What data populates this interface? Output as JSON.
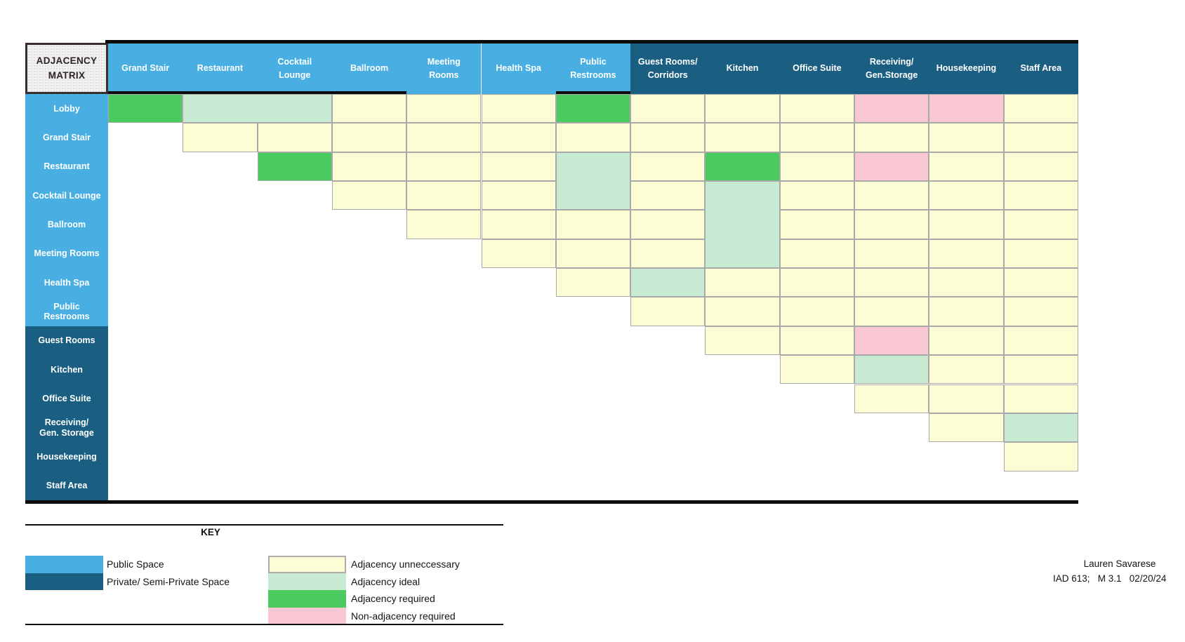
{
  "title": "ADJACENCY\nMATRIX",
  "key": {
    "title": "KEY"
  },
  "colors": {
    "public_space": "#49AFE3",
    "private_space": "#1A5E81",
    "U": "#FCFCD5",
    "I": "#C8EAD2",
    "R": "#4BCB5F",
    "N": "#F9C8D2",
    "gridline": "#A9A9A9",
    "black_rule": "#0C0C0C"
  },
  "columns": [
    {
      "label": "Grand Stair",
      "group": "public"
    },
    {
      "label": "Restaurant",
      "group": "public"
    },
    {
      "label": "Cocktail\nLounge",
      "group": "public"
    },
    {
      "label": "Ballroom",
      "group": "public"
    },
    {
      "label": "Meeting\nRooms",
      "group": "public"
    },
    {
      "label": "Health Spa",
      "group": "public"
    },
    {
      "label": "Public\nRestrooms",
      "group": "public"
    },
    {
      "label": "Guest Rooms/\nCorridors",
      "group": "private"
    },
    {
      "label": "Kitchen",
      "group": "private"
    },
    {
      "label": "Office Suite",
      "group": "private"
    },
    {
      "label": "Receiving/\nGen.Storage",
      "group": "private"
    },
    {
      "label": "Housekeeping",
      "group": "private"
    },
    {
      "label": "Staff Area",
      "group": "private"
    }
  ],
  "rows": [
    {
      "label": "Lobby",
      "group": "public",
      "cells": [
        {
          "c": 0,
          "v": "R"
        },
        {
          "c": 1,
          "v": "I",
          "cs": 2
        },
        {
          "c": 3,
          "v": "U"
        },
        {
          "c": 4,
          "v": "U"
        },
        {
          "c": 5,
          "v": "U"
        },
        {
          "c": 6,
          "v": "R"
        },
        {
          "c": 7,
          "v": "U"
        },
        {
          "c": 8,
          "v": "U"
        },
        {
          "c": 9,
          "v": "U"
        },
        {
          "c": 10,
          "v": "N"
        },
        {
          "c": 11,
          "v": "N"
        },
        {
          "c": 12,
          "v": "U"
        }
      ]
    },
    {
      "label": "Grand Stair",
      "group": "public",
      "cells": [
        {
          "c": 1,
          "v": "U"
        },
        {
          "c": 2,
          "v": "U"
        },
        {
          "c": 3,
          "v": "U"
        },
        {
          "c": 4,
          "v": "U"
        },
        {
          "c": 5,
          "v": "U"
        },
        {
          "c": 6,
          "v": "U"
        },
        {
          "c": 7,
          "v": "U"
        },
        {
          "c": 8,
          "v": "U"
        },
        {
          "c": 9,
          "v": "U"
        },
        {
          "c": 10,
          "v": "U"
        },
        {
          "c": 11,
          "v": "U"
        },
        {
          "c": 12,
          "v": "U"
        }
      ]
    },
    {
      "label": "Restaurant",
      "group": "public",
      "cells": [
        {
          "c": 2,
          "v": "R"
        },
        {
          "c": 3,
          "v": "U"
        },
        {
          "c": 4,
          "v": "U"
        },
        {
          "c": 5,
          "v": "U"
        },
        {
          "c": 6,
          "v": "I",
          "rs": 2
        },
        {
          "c": 7,
          "v": "U"
        },
        {
          "c": 8,
          "v": "R"
        },
        {
          "c": 9,
          "v": "U"
        },
        {
          "c": 10,
          "v": "N"
        },
        {
          "c": 11,
          "v": "U"
        },
        {
          "c": 12,
          "v": "U"
        }
      ]
    },
    {
      "label": "Cocktail Lounge",
      "group": "public",
      "cells": [
        {
          "c": 3,
          "v": "U"
        },
        {
          "c": 4,
          "v": "U"
        },
        {
          "c": 5,
          "v": "U"
        },
        {
          "c": 7,
          "v": "U"
        },
        {
          "c": 8,
          "v": "I",
          "rs": 3
        },
        {
          "c": 9,
          "v": "U"
        },
        {
          "c": 10,
          "v": "U"
        },
        {
          "c": 11,
          "v": "U"
        },
        {
          "c": 12,
          "v": "U"
        }
      ]
    },
    {
      "label": "Ballroom",
      "group": "public",
      "cells": [
        {
          "c": 4,
          "v": "U"
        },
        {
          "c": 5,
          "v": "U"
        },
        {
          "c": 6,
          "v": "U"
        },
        {
          "c": 7,
          "v": "U"
        },
        {
          "c": 9,
          "v": "U"
        },
        {
          "c": 10,
          "v": "U"
        },
        {
          "c": 11,
          "v": "U"
        },
        {
          "c": 12,
          "v": "U"
        }
      ]
    },
    {
      "label": "Meeting Rooms",
      "group": "public",
      "cells": [
        {
          "c": 5,
          "v": "U"
        },
        {
          "c": 6,
          "v": "U"
        },
        {
          "c": 7,
          "v": "U"
        },
        {
          "c": 9,
          "v": "U"
        },
        {
          "c": 10,
          "v": "U"
        },
        {
          "c": 11,
          "v": "U"
        },
        {
          "c": 12,
          "v": "U"
        }
      ]
    },
    {
      "label": "Health Spa",
      "group": "public",
      "cells": [
        {
          "c": 6,
          "v": "U"
        },
        {
          "c": 7,
          "v": "I"
        },
        {
          "c": 8,
          "v": "U"
        },
        {
          "c": 9,
          "v": "U"
        },
        {
          "c": 10,
          "v": "U"
        },
        {
          "c": 11,
          "v": "U"
        },
        {
          "c": 12,
          "v": "U"
        }
      ]
    },
    {
      "label": "Public\nRestrooms",
      "group": "public",
      "cells": [
        {
          "c": 7,
          "v": "U"
        },
        {
          "c": 8,
          "v": "U"
        },
        {
          "c": 9,
          "v": "U"
        },
        {
          "c": 10,
          "v": "U"
        },
        {
          "c": 11,
          "v": "U"
        },
        {
          "c": 12,
          "v": "U"
        }
      ]
    },
    {
      "label": "Guest Rooms",
      "group": "private",
      "cells": [
        {
          "c": 8,
          "v": "U"
        },
        {
          "c": 9,
          "v": "U"
        },
        {
          "c": 10,
          "v": "N"
        },
        {
          "c": 11,
          "v": "U"
        },
        {
          "c": 12,
          "v": "U"
        }
      ]
    },
    {
      "label": "Kitchen",
      "group": "private",
      "cells": [
        {
          "c": 9,
          "v": "U"
        },
        {
          "c": 10,
          "v": "I"
        },
        {
          "c": 11,
          "v": "U"
        },
        {
          "c": 12,
          "v": "U"
        }
      ]
    },
    {
      "label": "Office Suite",
      "group": "private",
      "cells": [
        {
          "c": 10,
          "v": "U"
        },
        {
          "c": 11,
          "v": "U"
        },
        {
          "c": 12,
          "v": "U"
        }
      ]
    },
    {
      "label": "Receiving/\nGen. Storage",
      "group": "private",
      "cells": [
        {
          "c": 11,
          "v": "U"
        },
        {
          "c": 12,
          "v": "I"
        }
      ]
    },
    {
      "label": "Housekeeping",
      "group": "private",
      "cells": [
        {
          "c": 12,
          "v": "U"
        }
      ]
    },
    {
      "label": "Staff Area",
      "group": "private",
      "cells": []
    }
  ],
  "legend": {
    "space_types": [
      {
        "label": "Public Space",
        "color": "#49AFE3"
      },
      {
        "label": "Private/ Semi-Private Space",
        "color": "#1A5E81"
      }
    ],
    "adjacency": [
      {
        "code": "U",
        "label": "Adjacency unneccessary",
        "color": "#FCFCD5",
        "outlined": true
      },
      {
        "code": "I",
        "label": "Adjacency ideal",
        "color": "#C8EAD2",
        "outlined": false
      },
      {
        "code": "R",
        "label": "Adjacency required",
        "color": "#4BCB5F",
        "outlined": false
      },
      {
        "code": "N",
        "label": "Non-adjacency required",
        "color": "#F9C8D2",
        "outlined": false
      }
    ]
  },
  "credits": {
    "line1": "Lauren Savarese",
    "line2": "IAD 613;   M 3.1   02/20/24"
  }
}
